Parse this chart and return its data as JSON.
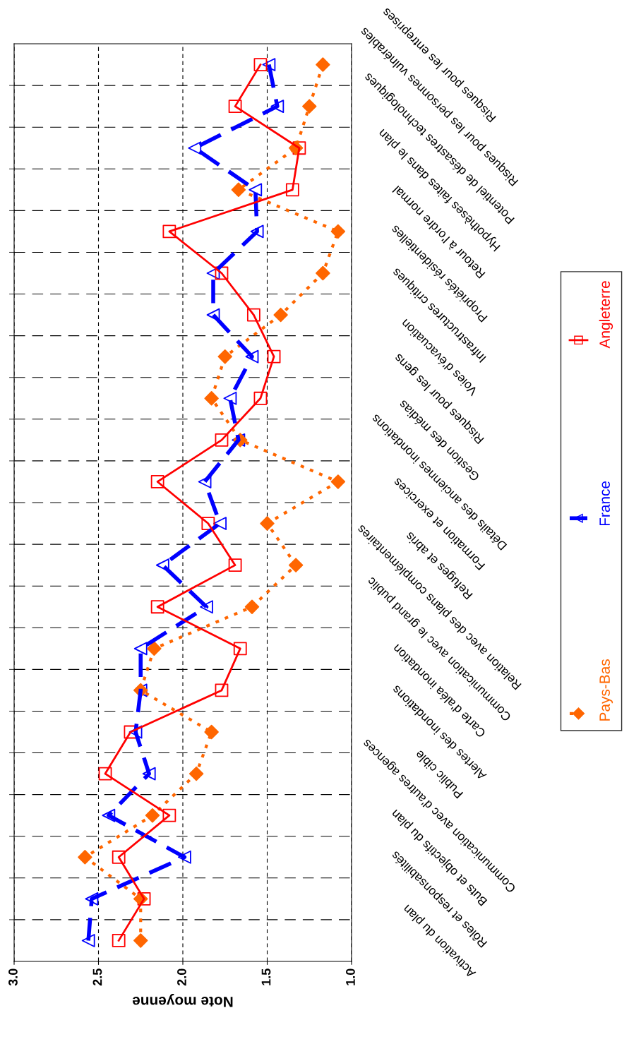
{
  "chart_data": {
    "type": "line",
    "orientation": "horizontal",
    "xlabel": "Note moyenne",
    "categories": [
      "Risques pour les entreprises",
      "Risques pour les personnes vulnérables",
      "Potentiel de désastres technologiques",
      "Hypothèses faites dans le plan",
      "Retour à l'ordre normal",
      "Propriétés résidentielles",
      "Infrastructures critiques",
      "Voies d'évacuation",
      "Risques pour les gens",
      "Gestion des médias",
      "Détails des anciennes inondations",
      "Formation et exercices",
      "Refuges et abris",
      "Relation avec des plans complémentaires",
      "Communication avec le grand public",
      "Carte d'aléa inondation",
      "Alertes des inondations",
      "Public cible",
      "Communication avec d'autres agences",
      "Buts et objectifs du plan",
      "Rôles et responsabilités",
      "Activation du plan"
    ],
    "series": [
      {
        "name": "Pays-Bas",
        "color": "#ff6600",
        "marker": "diamond",
        "line_style": "dotted",
        "values": [
          1.17,
          1.25,
          1.33,
          1.67,
          1.08,
          1.17,
          1.42,
          1.75,
          1.83,
          1.66,
          1.08,
          1.5,
          1.33,
          1.59,
          2.17,
          2.25,
          1.83,
          1.92,
          2.18,
          2.58,
          2.25,
          2.25
        ]
      },
      {
        "name": "France",
        "color": "#0000ff",
        "marker": "triangle",
        "line_style": "dashed",
        "values": [
          1.49,
          1.44,
          1.93,
          1.57,
          1.56,
          1.82,
          1.82,
          1.59,
          1.72,
          1.67,
          1.87,
          1.78,
          2.12,
          1.86,
          2.25,
          2.25,
          2.28,
          2.2,
          2.44,
          1.99,
          2.54,
          2.56
        ]
      },
      {
        "name": "Angleterre",
        "color": "#ff0000",
        "marker": "square",
        "line_style": "solid",
        "values": [
          1.54,
          1.69,
          1.31,
          1.35,
          2.08,
          1.77,
          1.58,
          1.46,
          1.54,
          1.77,
          2.15,
          1.85,
          1.69,
          2.15,
          1.66,
          1.77,
          2.31,
          2.46,
          2.08,
          2.38,
          2.23,
          2.38
        ]
      }
    ],
    "xlim": [
      3.0,
      1.0
    ],
    "xticks": [
      {
        "value": 3.0,
        "label": "3.0"
      },
      {
        "value": 2.5,
        "label": "2.5"
      },
      {
        "value": 2.0,
        "label": "2.0"
      },
      {
        "value": 1.5,
        "label": "1.5"
      },
      {
        "value": 1.0,
        "label": "1.0"
      }
    ],
    "grid": true,
    "legend": "right"
  }
}
